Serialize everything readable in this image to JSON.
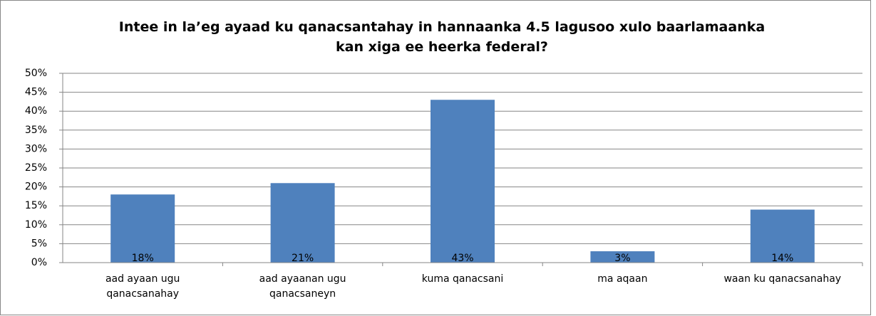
{
  "chart_data": {
    "type": "bar",
    "title": "Intee in la’eg ayaad ku qanacsantahay in hannaanka 4.5 lagusoo xulo baarlamaanka kan xiga ee heerka federal?",
    "categories": [
      "aad ayaan ugu qanacsanahay",
      "aad ayaanan ugu qanacsaneyn",
      "kuma qanacsani",
      "ma aqaan",
      "waan ku qanacsanahay"
    ],
    "values": [
      18,
      21,
      43,
      3,
      14
    ],
    "value_labels": [
      "18%",
      "21%",
      "43%",
      "3%",
      "14%"
    ],
    "color": "#4f81bd",
    "ylim": [
      0,
      50
    ],
    "yticks": [
      {
        "value": 0,
        "label": "0%"
      },
      {
        "value": 5,
        "label": "5%"
      },
      {
        "value": 10,
        "label": "10%"
      },
      {
        "value": 15,
        "label": "15%"
      },
      {
        "value": 20,
        "label": "20%"
      },
      {
        "value": 25,
        "label": "25%"
      },
      {
        "value": 30,
        "label": "30%"
      },
      {
        "value": 35,
        "label": "35%"
      },
      {
        "value": 40,
        "label": "40%"
      },
      {
        "value": 45,
        "label": "45%"
      },
      {
        "value": 50,
        "label": "50%"
      }
    ],
    "grid": true
  }
}
